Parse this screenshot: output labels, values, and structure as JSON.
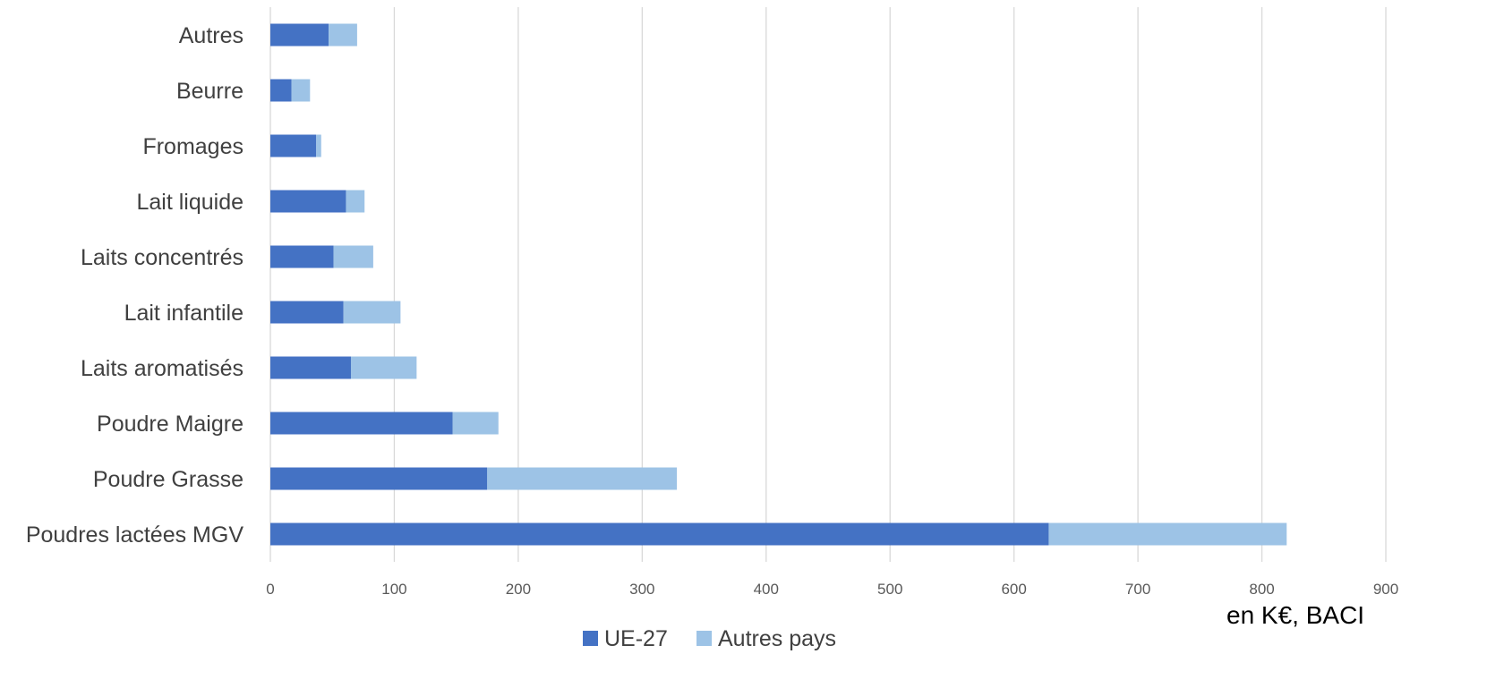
{
  "chart_data": {
    "type": "bar",
    "orientation": "horizontal",
    "stacked": true,
    "categories": [
      "Poudres lactées MGV",
      "Poudre Grasse",
      "Poudre Maigre",
      "Laits aromatisés",
      "Lait infantile",
      "Laits concentrés",
      "Lait liquide",
      "Fromages",
      "Beurre",
      "Autres"
    ],
    "series": [
      {
        "name": "UE-27",
        "color": "#4472C4",
        "values": [
          628,
          175,
          147,
          65,
          59,
          51,
          61,
          37,
          17,
          47
        ]
      },
      {
        "name": "Autres pays",
        "color": "#9DC3E6",
        "values": [
          192,
          153,
          37,
          53,
          46,
          32,
          15,
          4,
          15,
          23
        ]
      }
    ],
    "xlim": [
      0,
      900
    ],
    "xticks": [
      "0",
      "100",
      "200",
      "300",
      "400",
      "500",
      "600",
      "700",
      "800",
      "900"
    ],
    "grid": true,
    "legend_position": "bottom",
    "annotation": "en K€, BACI"
  }
}
